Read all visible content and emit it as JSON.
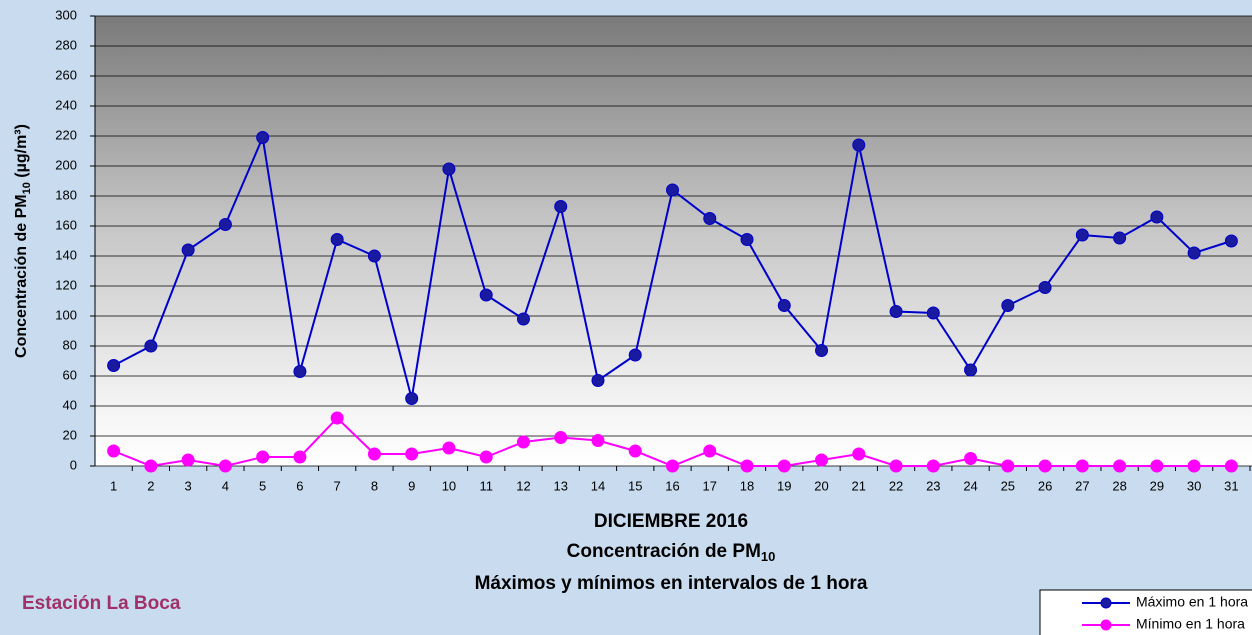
{
  "chart_data": {
    "type": "line",
    "title": [
      "DICIEMBRE 2016",
      "Concentración de PM",
      "10",
      "Máximos y mínimos en intervalos de 1 hora"
    ],
    "y_label": [
      "Concentración de PM",
      "10",
      " (µg/m³)"
    ],
    "station": "Estación La Boca",
    "categories": [
      "1",
      "2",
      "3",
      "4",
      "5",
      "6",
      "7",
      "8",
      "9",
      "10",
      "11",
      "12",
      "13",
      "14",
      "15",
      "16",
      "17",
      "18",
      "19",
      "20",
      "21",
      "22",
      "23",
      "24",
      "25",
      "26",
      "27",
      "28",
      "29",
      "30",
      "31"
    ],
    "series": [
      {
        "name": "Máximo en 1 hora",
        "color": "#0000cc",
        "marker_color": "#1a1aa0",
        "values": [
          67,
          80,
          144,
          161,
          219,
          63,
          151,
          140,
          45,
          198,
          114,
          98,
          173,
          57,
          74,
          184,
          165,
          151,
          107,
          77,
          214,
          103,
          102,
          64,
          107,
          119,
          154,
          152,
          166,
          142,
          150
        ]
      },
      {
        "name": "Mínimo en 1 hora",
        "color": "#ff00ff",
        "marker_color": "#ff00ff",
        "values": [
          10,
          0,
          4,
          0,
          6,
          6,
          32,
          8,
          8,
          12,
          6,
          16,
          19,
          17,
          10,
          0,
          10,
          0,
          0,
          4,
          8,
          0,
          0,
          5,
          0,
          0,
          0,
          0,
          0,
          0,
          0
        ]
      }
    ],
    "ylim": [
      0,
      300
    ],
    "yticks": [
      0,
      20,
      40,
      60,
      80,
      100,
      120,
      140,
      160,
      180,
      200,
      220,
      240,
      260,
      280,
      300
    ],
    "grid": true
  }
}
